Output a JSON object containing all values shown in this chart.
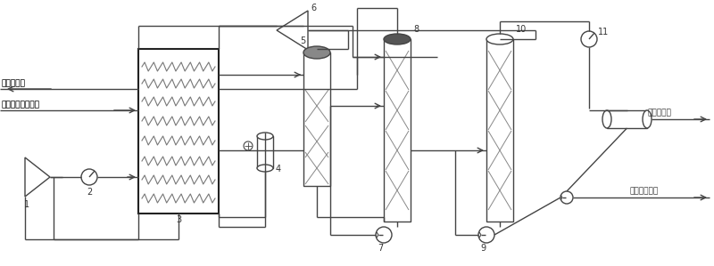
{
  "bg_color": "#ffffff",
  "lc": "#444444",
  "lc_thin": "#888888",
  "lw": 1.0,
  "labels": {
    "product_gas": "产品天然气",
    "dry_gas": "干燥的原料天然气",
    "lpg": "液化气产品",
    "stable": "稳定轻烃产品"
  }
}
